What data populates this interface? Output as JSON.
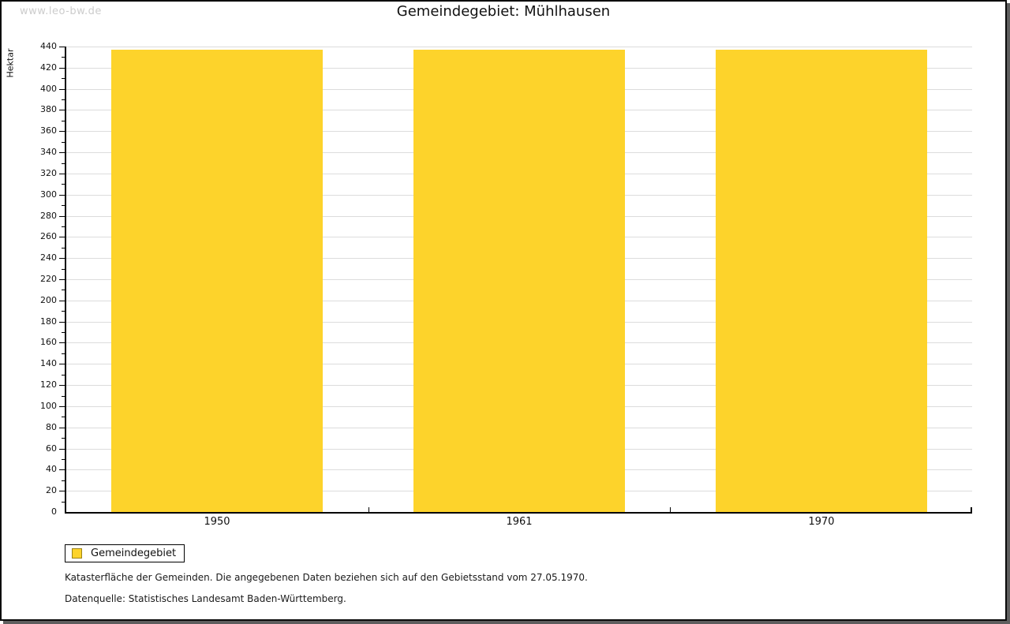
{
  "watermark": {
    "text": "www.leo-bw.de"
  },
  "chart_data": {
    "type": "bar",
    "title": "Gemeindegebiet: Mühlhausen",
    "ylabel": "Hektar",
    "xlabel": "",
    "categories": [
      "1950",
      "1961",
      "1970"
    ],
    "series": [
      {
        "name": "Gemeindegebiet",
        "color": "#FDD32B",
        "values": [
          437,
          437,
          437
        ]
      }
    ],
    "ylim": [
      0,
      440
    ],
    "y_major_step": 20,
    "y_minor_step": 10,
    "grid": "horizontal-major",
    "legend_position": "bottom-left"
  },
  "legend": {
    "label": "Gemeindegebiet",
    "swatch_color": "#FDD32B"
  },
  "notes": {
    "line1": "Katasterfläche der Gemeinden. Die angegebenen Daten beziehen sich auf den Gebietsstand vom 27.05.1970.",
    "line2": "Datenquelle: Statistisches Landesamt Baden-Württemberg."
  },
  "colors": {
    "bar": "#FDD32B",
    "grid": "#DCDCDC",
    "axis": "#000000",
    "frame": "#0A0A0A",
    "frame_shadow": "#5E5E5E",
    "watermark": "#CCCCCC"
  }
}
